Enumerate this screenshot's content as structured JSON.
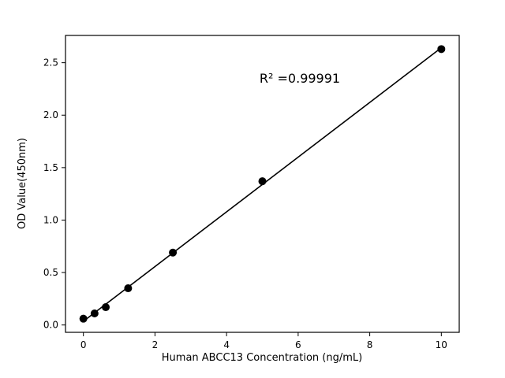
{
  "chart_data": {
    "type": "scatter",
    "title": "",
    "xlabel": "Human ABCC13 Concentration (ng/mL)",
    "ylabel": "OD Value(450nm)",
    "annotation": "R² =0.99991",
    "x": [
      0,
      0.3125,
      0.625,
      1.25,
      2.5,
      5,
      10
    ],
    "y": [
      0.06,
      0.11,
      0.17,
      0.35,
      0.69,
      1.37,
      2.63
    ],
    "fit": "linear",
    "xlim": [
      -0.5,
      10.5
    ],
    "ylim": [
      -0.07,
      2.76
    ],
    "xticks": {
      "values": [
        0,
        2,
        4,
        6,
        8,
        10
      ],
      "labels": [
        "0",
        "2",
        "4",
        "6",
        "8",
        "10"
      ]
    },
    "yticks": {
      "values": [
        0.0,
        0.5,
        1.0,
        1.5,
        2.0,
        2.5
      ],
      "labels": [
        "0.0",
        "0.5",
        "1.0",
        "1.5",
        "2.0",
        "2.5"
      ]
    },
    "marker_color": "#000000",
    "line_color": "#000000",
    "background_color": "#ffffff",
    "grid": false,
    "legend_position": "none"
  }
}
